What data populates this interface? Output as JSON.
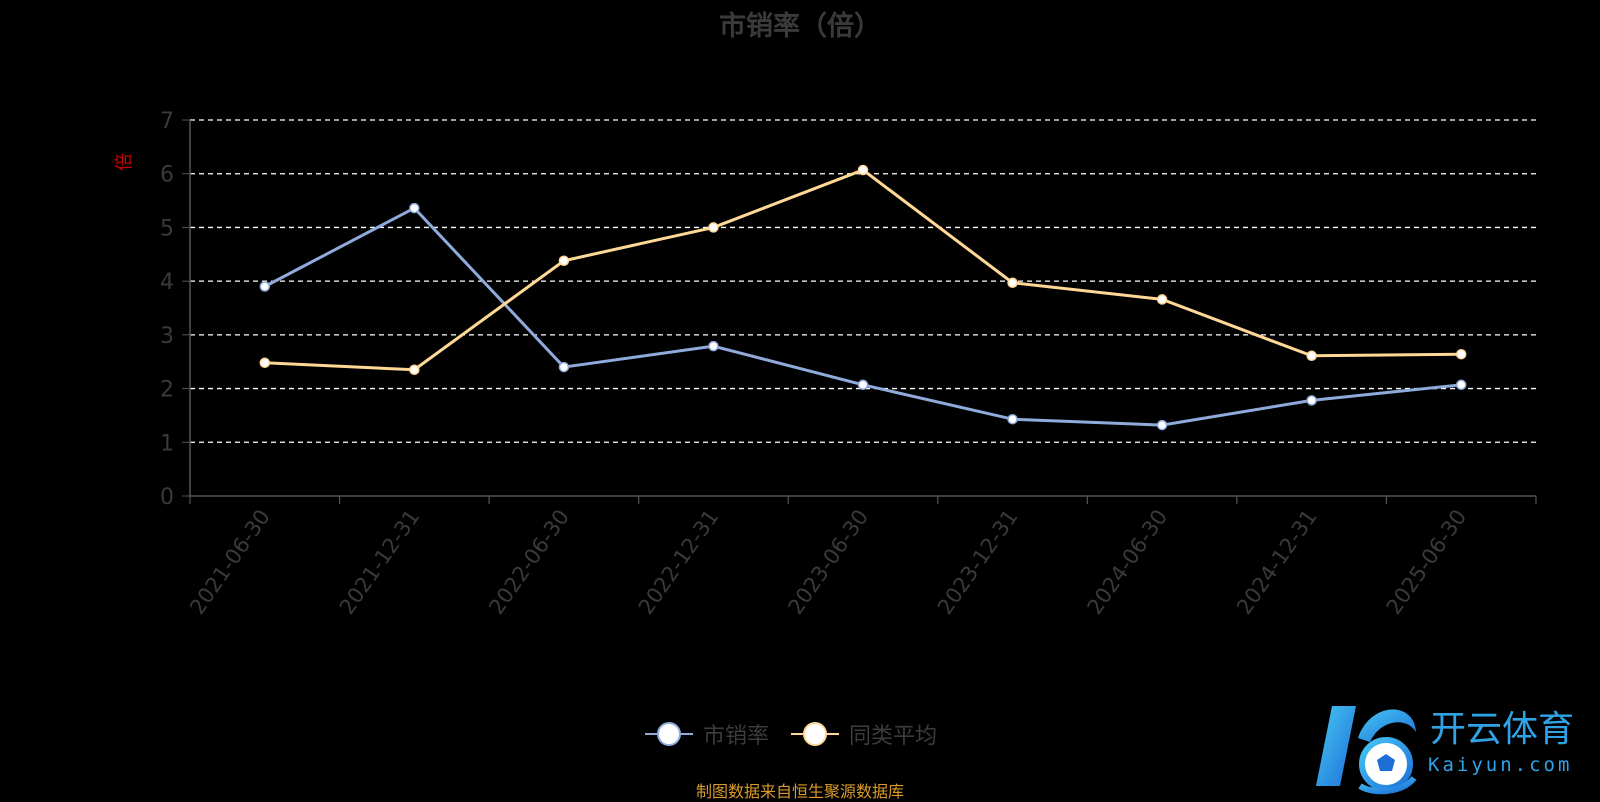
{
  "colors": {
    "series1": "#8fabdc",
    "series2": "#ffd896",
    "accent_note": "#d99a2b",
    "brand": "#2fa3e6"
  },
  "chart_data": {
    "type": "line",
    "title": "市销率（倍）",
    "ylabel": "倍",
    "ylim": [
      0,
      7
    ],
    "yticks": [
      "0",
      "1",
      "2",
      "3",
      "4",
      "5",
      "6",
      "7"
    ],
    "grid": true,
    "legend": "bottom-center",
    "categories": [
      "2021-06-30",
      "2021-12-31",
      "2022-06-30",
      "2022-12-31",
      "2023-06-30",
      "2023-12-31",
      "2024-06-30",
      "2024-12-31",
      "2025-06-30"
    ],
    "series": [
      {
        "name": "市销率",
        "values": [
          3.9,
          5.36,
          2.4,
          2.79,
          2.07,
          1.43,
          1.32,
          1.78,
          2.07
        ]
      },
      {
        "name": "同类平均",
        "values": [
          2.48,
          2.35,
          4.38,
          5.0,
          6.07,
          3.97,
          3.66,
          2.61,
          2.64
        ]
      }
    ]
  },
  "source_note": "制图数据来自恒生聚源数据库",
  "logo": {
    "cn_text": "开云体育",
    "en_text": "Kaiyun.com",
    "icon": "soccer-ball-k-logo-icon"
  }
}
